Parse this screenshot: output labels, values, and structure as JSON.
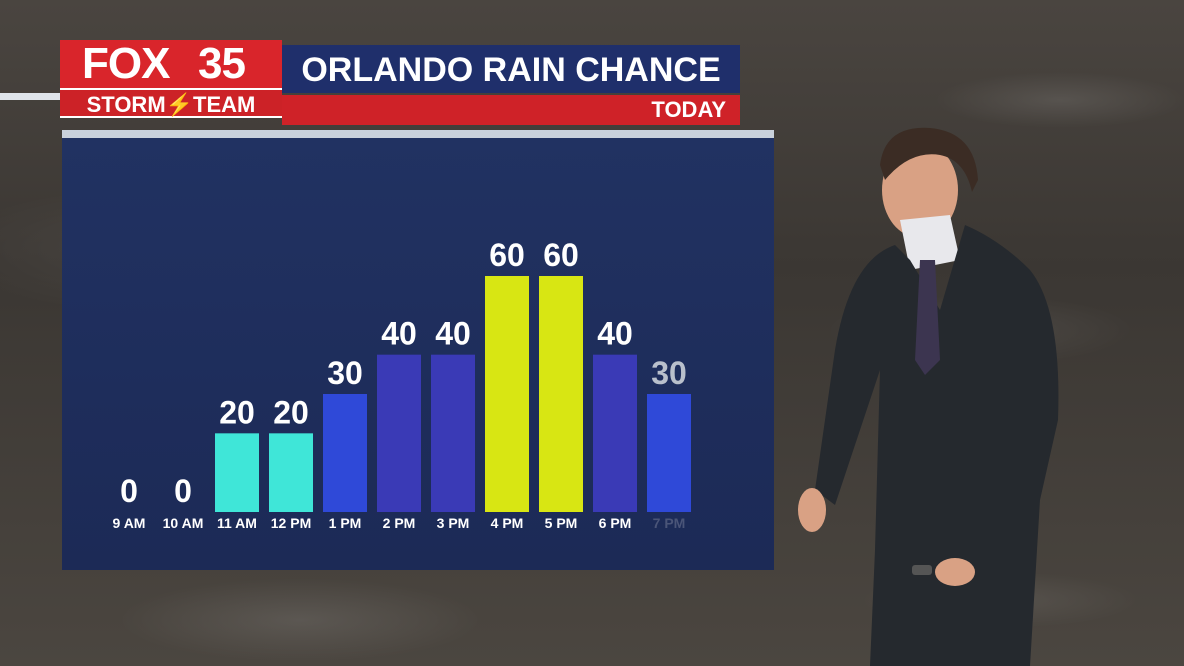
{
  "header": {
    "brand": "FOX 35",
    "brand_fox": "FOX",
    "brand_num": "35",
    "storm_team": "STORM⚡TEAM",
    "title": "ORLANDO RAIN CHANCE",
    "subtitle": "TODAY"
  },
  "colors": {
    "low": "#3fe6d8",
    "mid": "#2f49d8",
    "high": "#3a3ab6",
    "peak": "#d8e613",
    "label": "#ffffff",
    "faded_label": "#b9c0cc"
  },
  "chart_data": {
    "type": "bar",
    "title": "ORLANDO RAIN CHANCE",
    "categories": [
      "9 AM",
      "10 AM",
      "11 AM",
      "12 PM",
      "1 PM",
      "2 PM",
      "3 PM",
      "4 PM",
      "5 PM",
      "6 PM",
      "7 PM"
    ],
    "values": [
      0,
      0,
      20,
      20,
      30,
      40,
      40,
      60,
      60,
      40,
      30
    ],
    "bar_colors": [
      "#3fe6d8",
      "#3fe6d8",
      "#3fe6d8",
      "#3fe6d8",
      "#2f49d8",
      "#3a3ab6",
      "#3a3ab6",
      "#d8e613",
      "#d8e613",
      "#3a3ab6",
      "#2f49d8"
    ],
    "faded": [
      false,
      false,
      false,
      false,
      false,
      false,
      false,
      false,
      false,
      false,
      true
    ],
    "ylim": [
      0,
      60
    ],
    "grid": false,
    "legend": "none"
  }
}
